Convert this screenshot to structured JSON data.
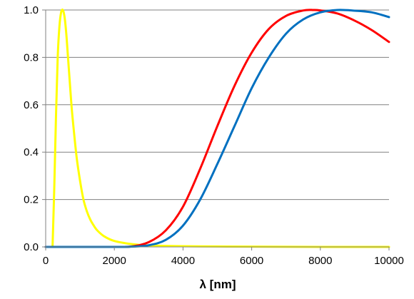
{
  "chart_data": {
    "type": "line",
    "title": "",
    "xlabel": "λ [nm]",
    "ylabel": "",
    "xlim": [
      0,
      10000
    ],
    "ylim": [
      0,
      1.0
    ],
    "x_ticks": [
      0,
      2000,
      4000,
      6000,
      8000,
      10000
    ],
    "x_tick_labels": [
      "0",
      "2000",
      "4000",
      "6000",
      "8000",
      "10000"
    ],
    "y_ticks": [
      0,
      0.2,
      0.4,
      0.6,
      0.8,
      1.0
    ],
    "y_tick_labels": [
      "0.0",
      "0.2",
      "0.4",
      "0.6",
      "0.8",
      "1.0"
    ],
    "grid": "horizontal",
    "legend": "none",
    "series": [
      {
        "color": "#ffff00",
        "x": [
          200,
          250,
          300,
          350,
          400,
          450,
          500,
          550,
          600,
          650,
          700,
          750,
          800,
          900,
          1000,
          1100,
          1200,
          1300,
          1400,
          1500,
          1700,
          2000,
          2500,
          3000,
          4000,
          5000,
          6000,
          8000,
          10000
        ],
        "y": [
          0.0,
          0.25,
          0.55,
          0.8,
          0.93,
          0.99,
          1.0,
          0.97,
          0.9,
          0.8,
          0.7,
          0.6,
          0.52,
          0.38,
          0.28,
          0.2,
          0.15,
          0.115,
          0.09,
          0.07,
          0.045,
          0.025,
          0.012,
          0.006,
          0.003,
          0.002,
          0.001,
          0.0,
          0.0
        ]
      },
      {
        "color": "#ff0000",
        "x": [
          0,
          2000,
          2500,
          3000,
          3500,
          4000,
          4500,
          5000,
          5500,
          6000,
          6500,
          7000,
          7500,
          7800,
          8000,
          8500,
          9000,
          9500,
          10000
        ],
        "y": [
          0.0,
          0.0,
          0.002,
          0.02,
          0.07,
          0.17,
          0.33,
          0.51,
          0.68,
          0.82,
          0.92,
          0.975,
          0.998,
          1.0,
          0.998,
          0.985,
          0.955,
          0.915,
          0.865
        ]
      },
      {
        "color": "#0070c0",
        "x": [
          0,
          2000,
          2500,
          3000,
          3500,
          4000,
          4500,
          5000,
          5500,
          6000,
          6500,
          7000,
          7500,
          8000,
          8500,
          9000,
          9500,
          10000
        ],
        "y": [
          0.0,
          0.0,
          0.001,
          0.007,
          0.03,
          0.09,
          0.2,
          0.35,
          0.51,
          0.67,
          0.8,
          0.9,
          0.96,
          0.99,
          1.0,
          0.997,
          0.99,
          0.97
        ]
      }
    ]
  }
}
